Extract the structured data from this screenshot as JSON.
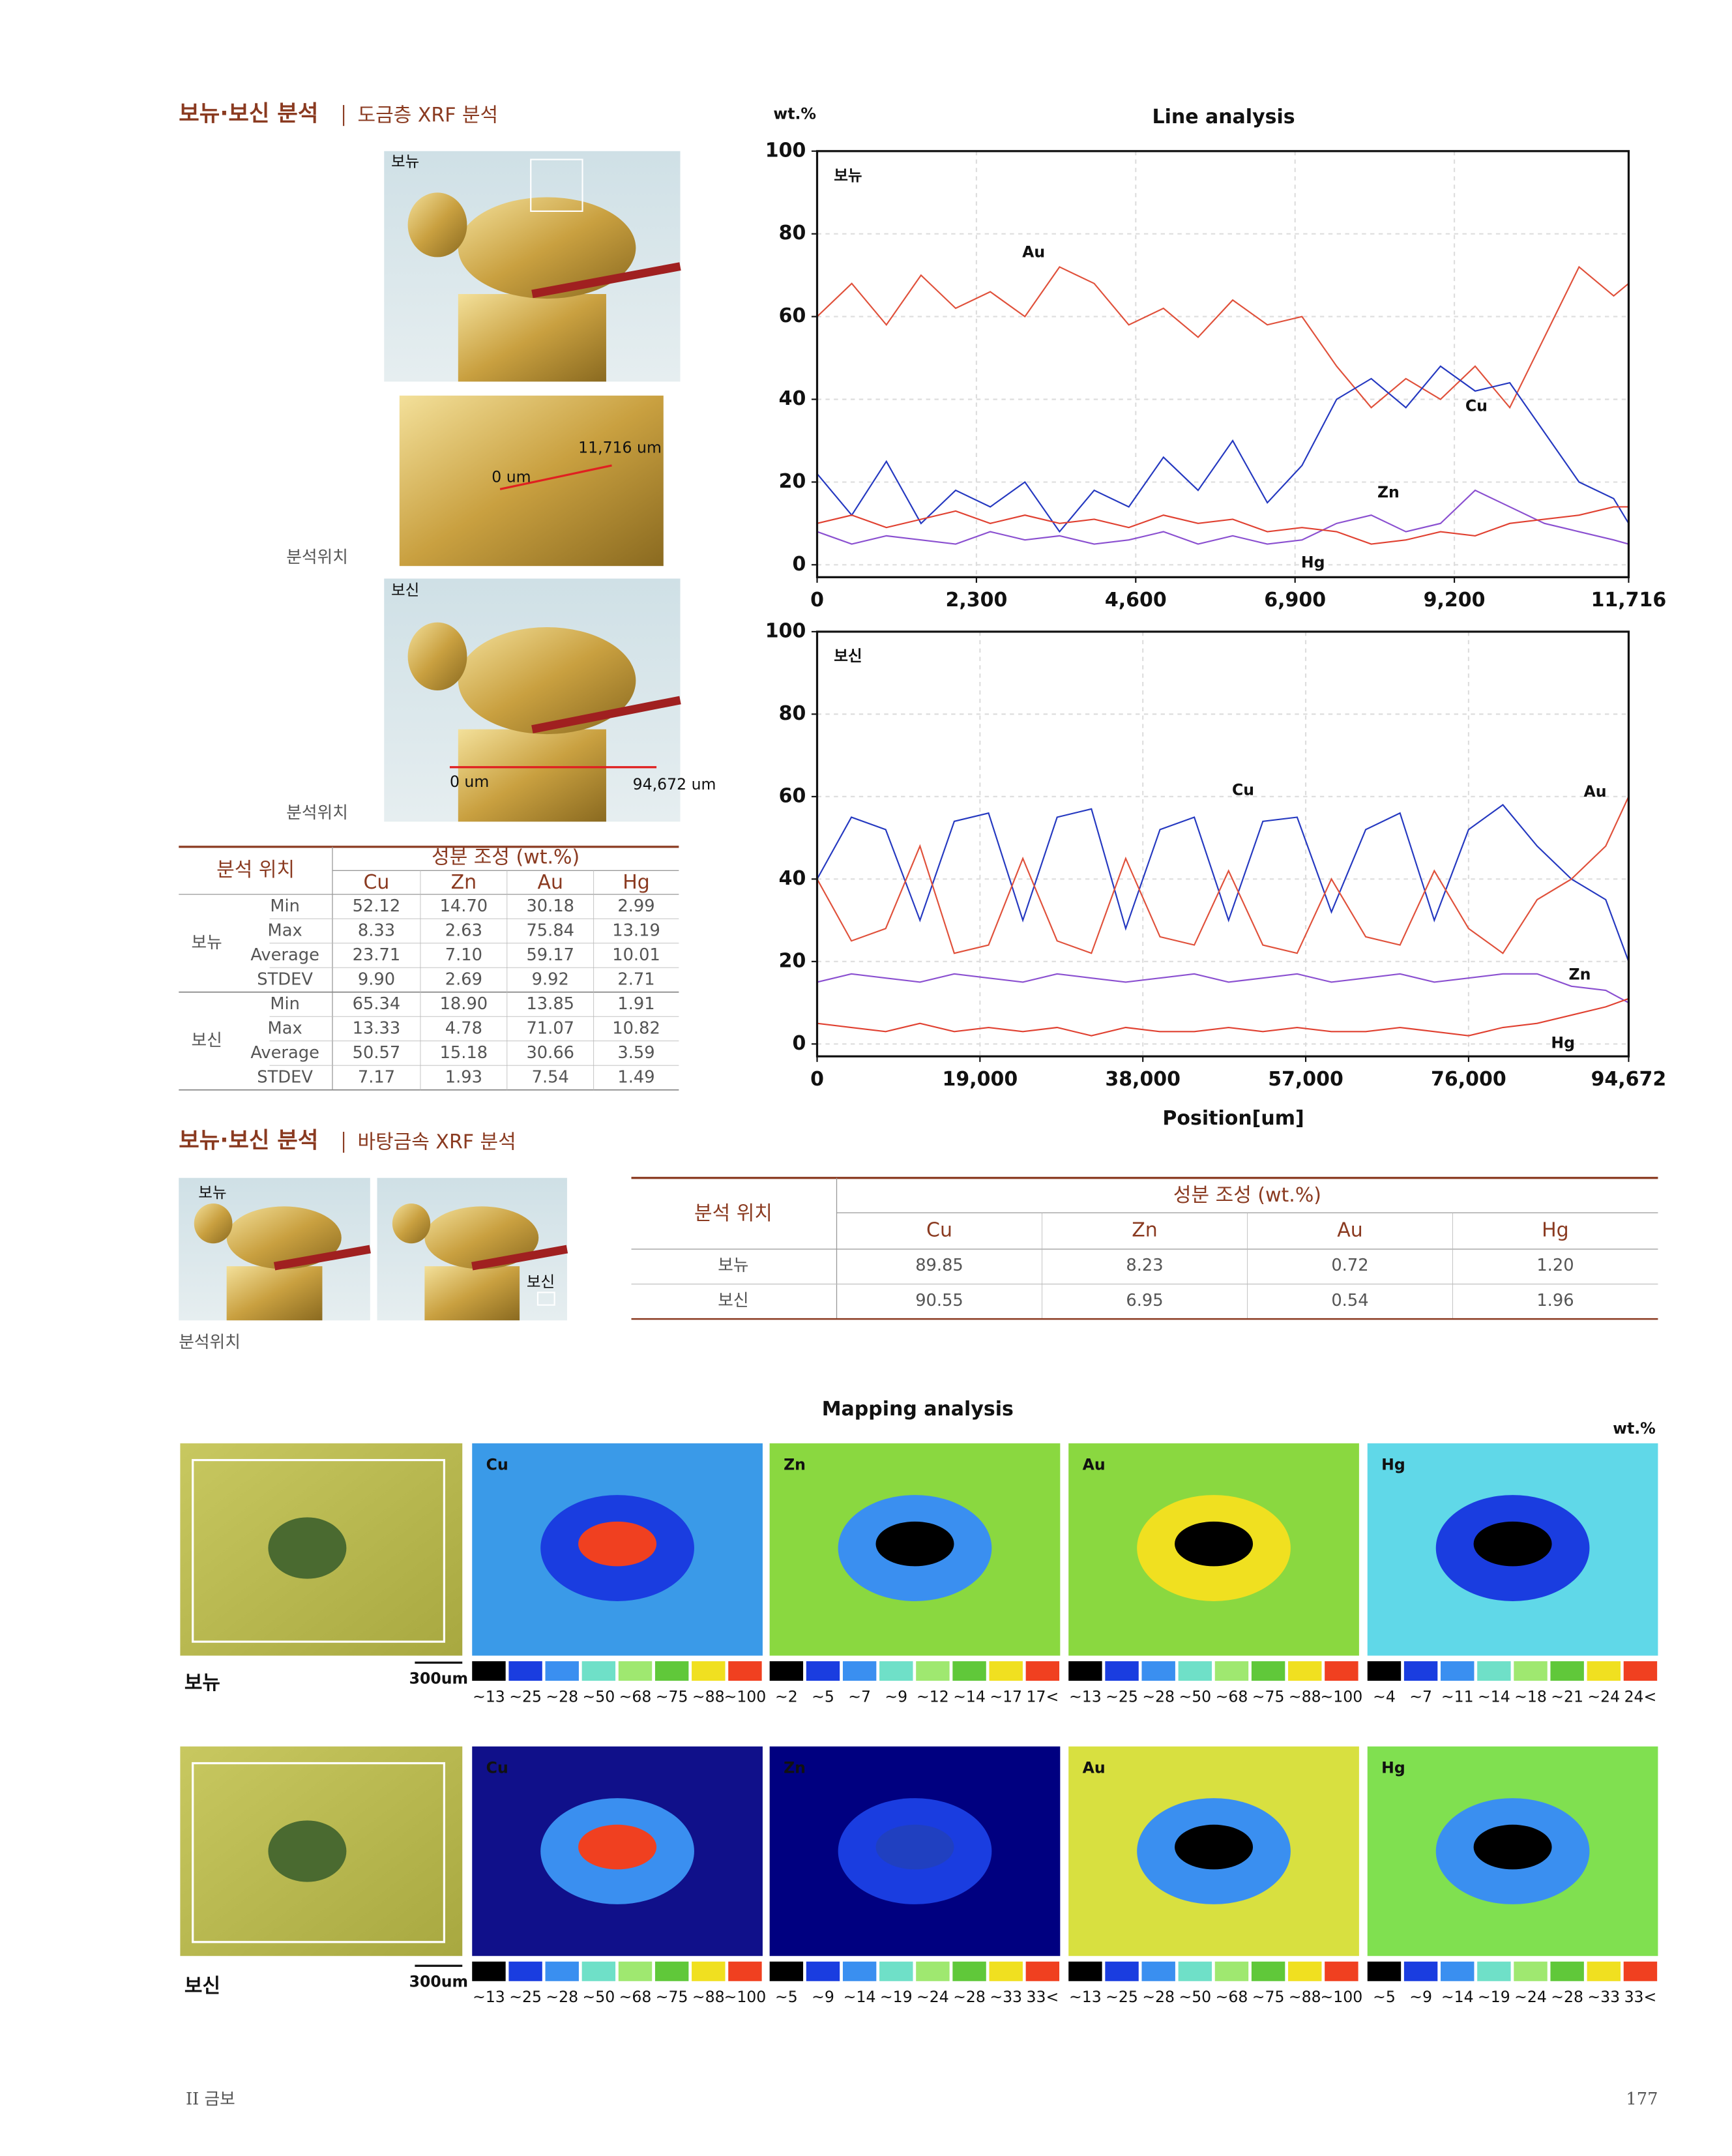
{
  "section1": {
    "title": "보뉴·보신 분석",
    "subtitle": "도금층 XRF 분석"
  },
  "photos1": {
    "label_top": "보뉴",
    "scan_start": "0 um",
    "scan_end": "11,716 um",
    "caption1": "분석위치",
    "label_bottom": "보신",
    "scan2_start": "0 um",
    "scan2_end": "94,672 um",
    "caption2": "분석위치"
  },
  "table1": {
    "header": [
      "분석 위치",
      "성분 조성 (wt.%)"
    ],
    "columns": [
      "Cu",
      "Zn",
      "Au",
      "Hg"
    ],
    "groups": [
      {
        "name": "보뉴",
        "rows": [
          {
            "stat": "Min",
            "values": [
              "52.12",
              "14.70",
              "30.18",
              "2.99"
            ]
          },
          {
            "stat": "Max",
            "values": [
              "8.33",
              "2.63",
              "75.84",
              "13.19"
            ]
          },
          {
            "stat": "Average",
            "values": [
              "23.71",
              "7.10",
              "59.17",
              "10.01"
            ]
          },
          {
            "stat": "STDEV",
            "values": [
              "9.90",
              "2.69",
              "9.92",
              "2.71"
            ]
          }
        ]
      },
      {
        "name": "보신",
        "rows": [
          {
            "stat": "Min",
            "values": [
              "65.34",
              "18.90",
              "13.85",
              "1.91"
            ]
          },
          {
            "stat": "Max",
            "values": [
              "13.33",
              "4.78",
              "71.07",
              "10.82"
            ]
          },
          {
            "stat": "Average",
            "values": [
              "50.57",
              "15.18",
              "30.66",
              "3.59"
            ]
          },
          {
            "stat": "STDEV",
            "values": [
              "7.17",
              "1.93",
              "7.54",
              "1.49"
            ]
          }
        ]
      }
    ]
  },
  "chart_data": [
    {
      "type": "line",
      "title": "Line analysis",
      "ylabel": "wt.%",
      "panel_label": "보뉴",
      "grid": true,
      "xlim": [
        0,
        11716
      ],
      "ylim": [
        -3,
        100
      ],
      "xticks": [
        0,
        {
          "value": 2300,
          "label": "2,300"
        },
        {
          "value": 4600,
          "label": "4,600"
        },
        {
          "value": 6900,
          "label": "6,900"
        },
        {
          "value": 9200,
          "label": "9,200"
        },
        {
          "value": 11716,
          "label": "11,716"
        }
      ],
      "yticks": [
        0,
        20,
        40,
        60,
        80,
        100
      ],
      "x": [
        0,
        500,
        1000,
        1500,
        2000,
        2500,
        3000,
        3500,
        4000,
        4500,
        5000,
        5500,
        6000,
        6500,
        7000,
        7500,
        8000,
        8500,
        9000,
        9500,
        10000,
        10500,
        11000,
        11500,
        11716
      ],
      "series": [
        {
          "name": "Au",
          "color": "#e0503a",
          "values": [
            60,
            68,
            58,
            70,
            62,
            66,
            60,
            72,
            68,
            58,
            62,
            55,
            64,
            58,
            60,
            48,
            38,
            45,
            40,
            48,
            38,
            55,
            72,
            65,
            68
          ]
        },
        {
          "name": "Cu",
          "color": "#2438c0",
          "values": [
            22,
            12,
            25,
            10,
            18,
            14,
            20,
            8,
            18,
            14,
            26,
            18,
            30,
            15,
            24,
            40,
            45,
            38,
            48,
            42,
            44,
            32,
            20,
            16,
            10
          ]
        },
        {
          "name": "Zn",
          "color": "#8a4fd0",
          "values": [
            8,
            5,
            7,
            6,
            5,
            8,
            6,
            7,
            5,
            6,
            8,
            5,
            7,
            5,
            6,
            10,
            12,
            8,
            10,
            18,
            14,
            10,
            8,
            6,
            5
          ]
        },
        {
          "name": "Hg",
          "color": "#e04030",
          "values": [
            10,
            12,
            9,
            11,
            13,
            10,
            12,
            10,
            11,
            9,
            12,
            10,
            11,
            8,
            9,
            8,
            5,
            6,
            8,
            7,
            10,
            11,
            12,
            14,
            14
          ]
        }
      ]
    },
    {
      "type": "line",
      "panel_label": "보신",
      "xlabel": "Position[um]",
      "grid": true,
      "xlim": [
        0,
        94672
      ],
      "ylim": [
        -3,
        100
      ],
      "xticks": [
        0,
        {
          "value": 19000,
          "label": "19,000"
        },
        {
          "value": 38000,
          "label": "38,000"
        },
        {
          "value": 57000,
          "label": "57,000"
        },
        {
          "value": 76000,
          "label": "76,000"
        },
        {
          "value": 94672,
          "label": "94,672"
        }
      ],
      "yticks": [
        0,
        20,
        40,
        60,
        80,
        100
      ],
      "x": [
        0,
        4000,
        8000,
        12000,
        16000,
        20000,
        24000,
        28000,
        32000,
        36000,
        40000,
        44000,
        48000,
        52000,
        56000,
        60000,
        64000,
        68000,
        72000,
        76000,
        80000,
        84000,
        88000,
        92000,
        94672
      ],
      "series": [
        {
          "name": "Cu",
          "color": "#2438c0",
          "values": [
            40,
            55,
            52,
            30,
            54,
            56,
            30,
            55,
            57,
            28,
            52,
            55,
            30,
            54,
            55,
            32,
            52,
            56,
            30,
            52,
            58,
            48,
            40,
            35,
            20
          ]
        },
        {
          "name": "Au",
          "color": "#e0503a",
          "values": [
            40,
            25,
            28,
            48,
            22,
            24,
            45,
            25,
            22,
            45,
            26,
            24,
            42,
            24,
            22,
            40,
            26,
            24,
            42,
            28,
            22,
            35,
            40,
            48,
            60
          ]
        },
        {
          "name": "Zn",
          "color": "#8a4fd0",
          "values": [
            15,
            17,
            16,
            15,
            17,
            16,
            15,
            17,
            16,
            15,
            16,
            17,
            15,
            16,
            17,
            15,
            16,
            17,
            15,
            16,
            17,
            17,
            14,
            13,
            10
          ]
        },
        {
          "name": "Hg",
          "color": "#e04030",
          "values": [
            5,
            4,
            3,
            5,
            3,
            4,
            3,
            4,
            2,
            4,
            3,
            3,
            4,
            3,
            4,
            3,
            3,
            4,
            3,
            2,
            4,
            5,
            7,
            9,
            11
          ]
        }
      ]
    }
  ],
  "section2": {
    "title": "보뉴·보신 분석",
    "subtitle": "바탕금속 XRF 분석",
    "photo_label1": "보뉴",
    "photo_label2": "보신",
    "caption": "분석위치"
  },
  "table2": {
    "header": [
      "분석 위치",
      "성분 조성 (wt.%)"
    ],
    "columns": [
      "Cu",
      "Zn",
      "Au",
      "Hg"
    ],
    "rows": [
      [
        "보뉴",
        "89.85",
        "8.23",
        "0.72",
        "1.20"
      ],
      [
        "보신",
        "90.55",
        "6.95",
        "0.54",
        "1.96"
      ]
    ]
  },
  "mapping": {
    "title": "Mapping analysis",
    "unit": "wt.%",
    "rows": [
      {
        "label": "보뉴",
        "scale": "300um",
        "panels": [
          {
            "element": "Cu",
            "legend": [
              "~13",
              "~25",
              "~28",
              "~50",
              "~68",
              "~75",
              "~88",
              "~100"
            ]
          },
          {
            "element": "Zn",
            "legend": [
              "~2",
              "~5",
              "~7",
              "~9",
              "~12",
              "~14",
              "~17",
              "17<"
            ]
          },
          {
            "element": "Au",
            "legend": [
              "~13",
              "~25",
              "~28",
              "~50",
              "~68",
              "~75",
              "~88",
              "~100"
            ]
          },
          {
            "element": "Hg",
            "legend": [
              "~4",
              "~7",
              "~11",
              "~14",
              "~18",
              "~21",
              "~24",
              "24<"
            ]
          }
        ]
      },
      {
        "label": "보신",
        "scale": "300um",
        "panels": [
          {
            "element": "Cu",
            "legend": [
              "~13",
              "~25",
              "~28",
              "~50",
              "~68",
              "~75",
              "~88",
              "~100"
            ]
          },
          {
            "element": "Zn",
            "legend": [
              "~5",
              "~9",
              "~14",
              "~19",
              "~24",
              "~28",
              "~33",
              "33<"
            ]
          },
          {
            "element": "Au",
            "legend": [
              "~13",
              "~25",
              "~28",
              "~50",
              "~68",
              "~75",
              "~88",
              "~100"
            ]
          },
          {
            "element": "Hg",
            "legend": [
              "~5",
              "~9",
              "~14",
              "~19",
              "~24",
              "~28",
              "~33",
              "33<"
            ]
          }
        ]
      }
    ]
  },
  "footer": {
    "chapter": "II 금보",
    "page": "177"
  }
}
